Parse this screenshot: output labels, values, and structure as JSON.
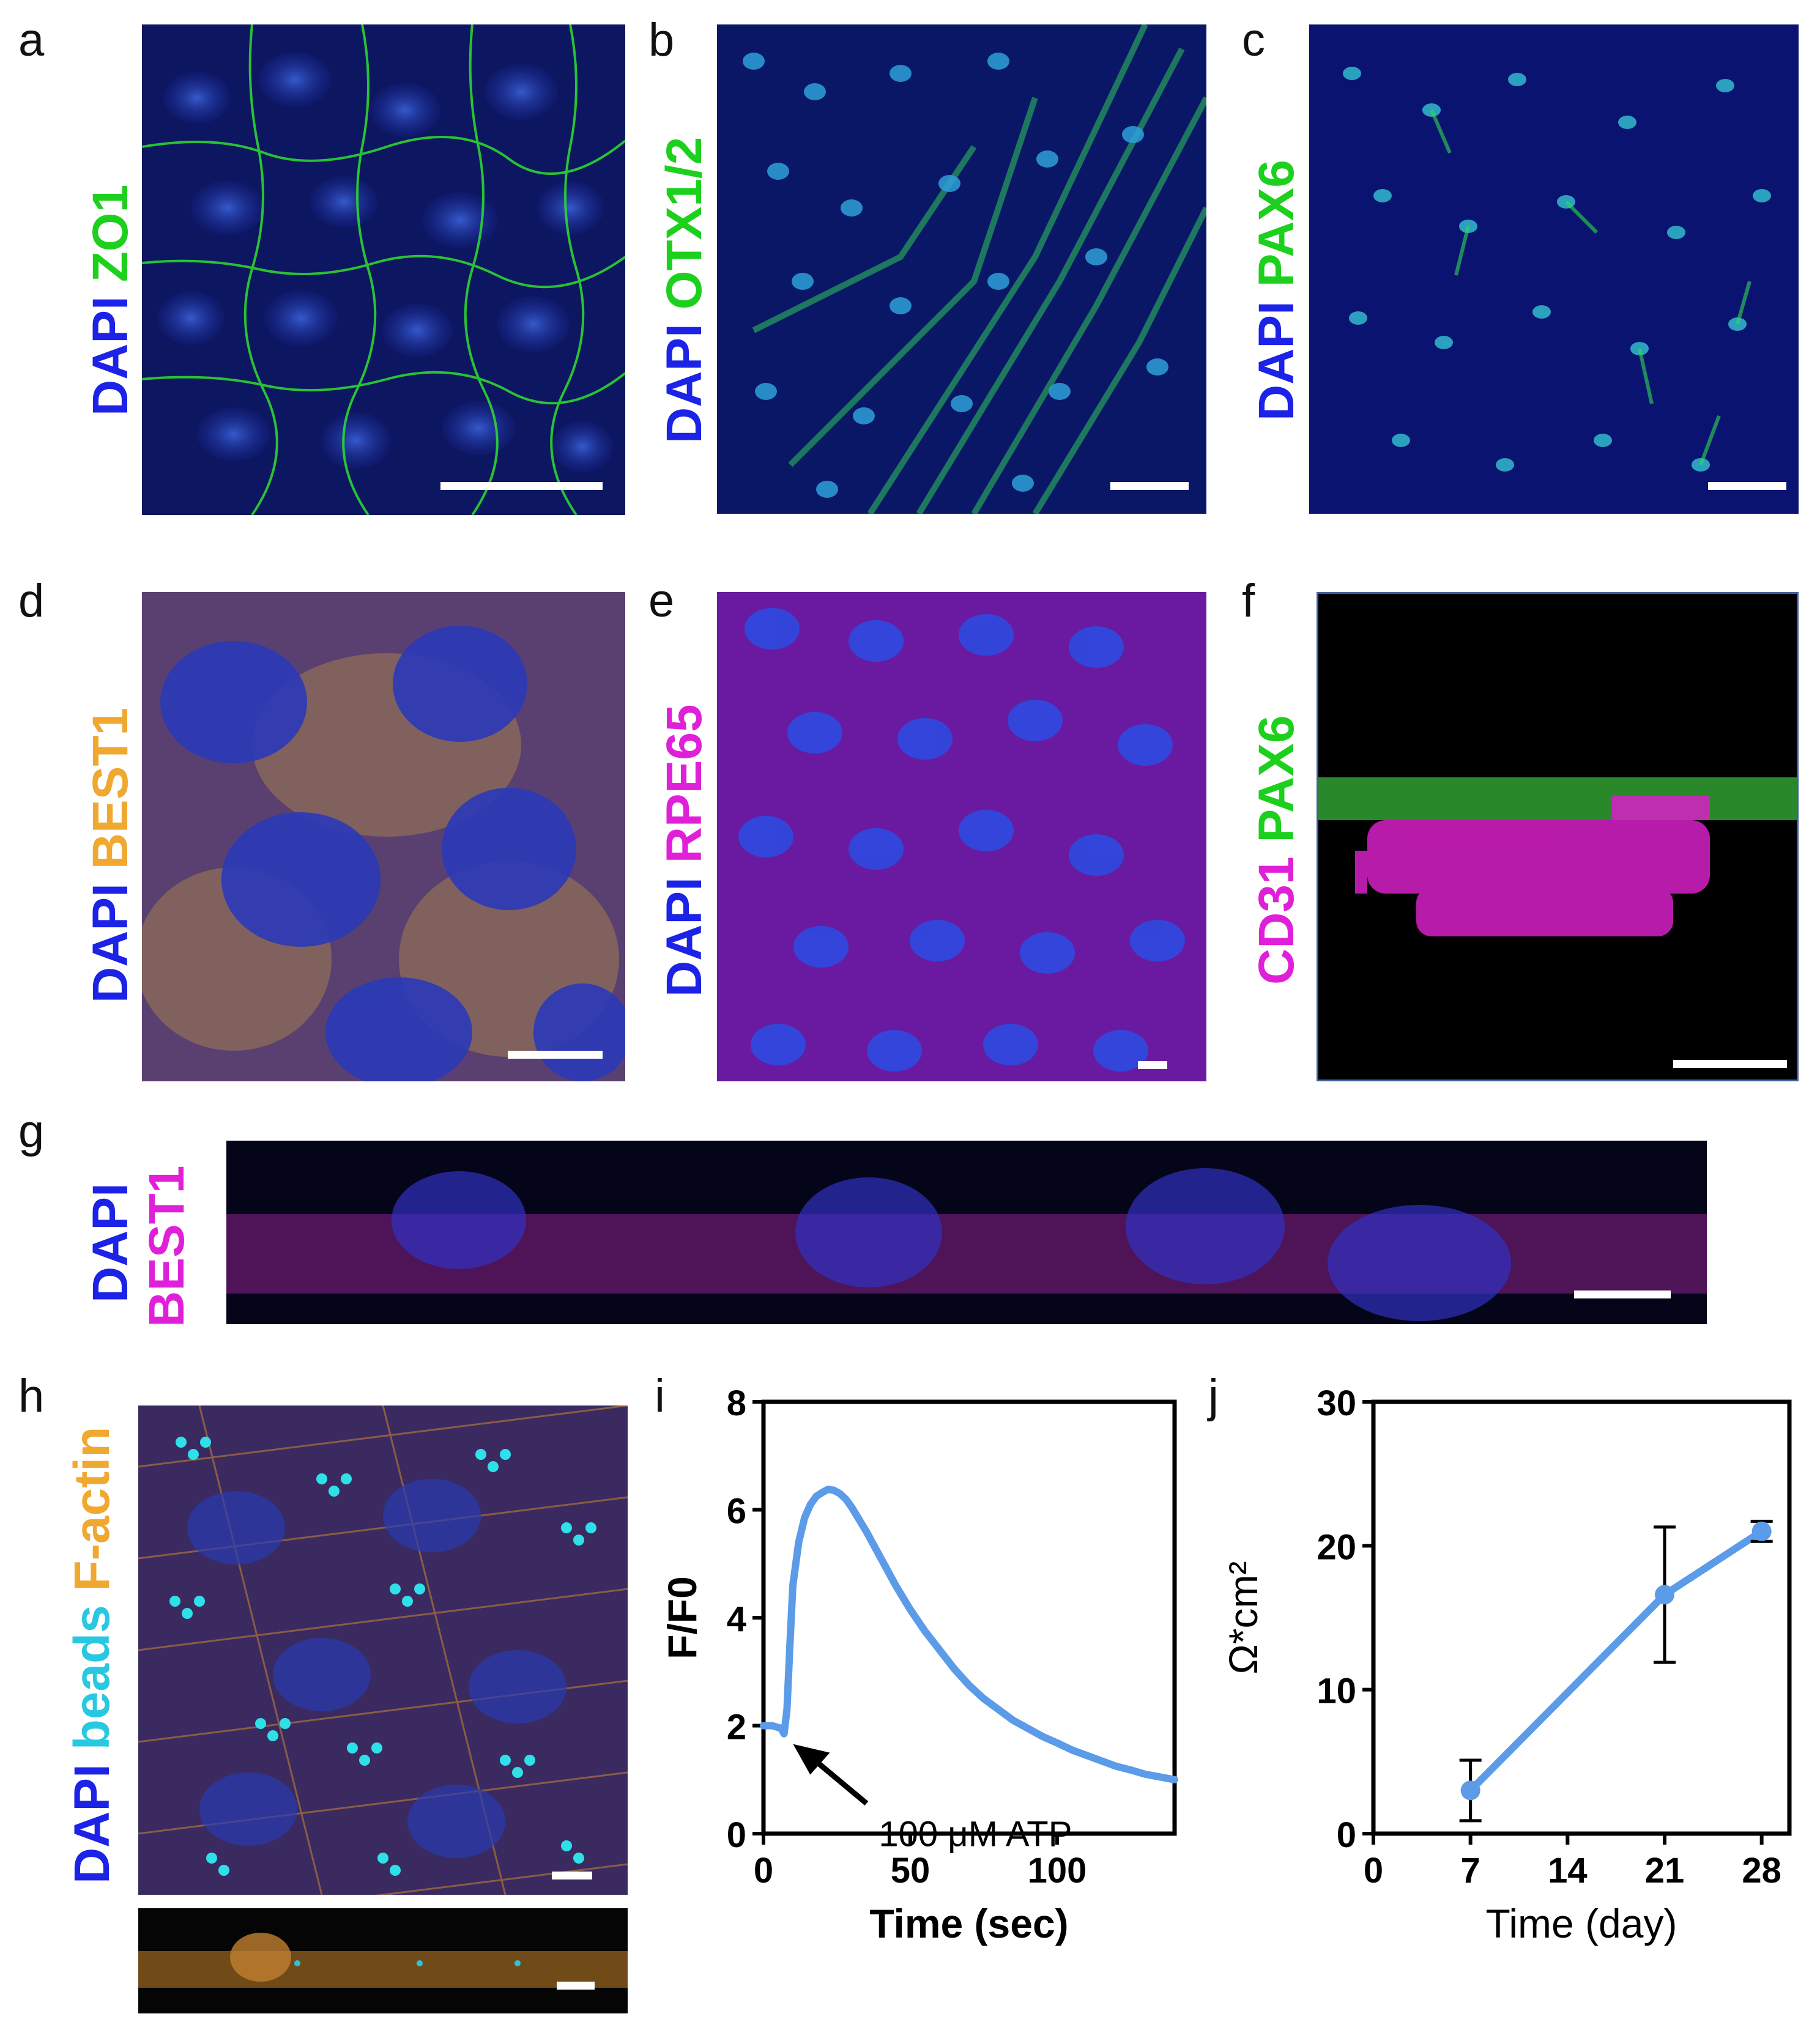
{
  "panels": {
    "a": {
      "letter": "a",
      "stain1": "DAPI",
      "stain2": "ZO1",
      "color1": "#1c22e6",
      "color2": "#1ed01e"
    },
    "b": {
      "letter": "b",
      "stain1": "DAPI",
      "stain2": "OTX1/2",
      "color1": "#1c22e6",
      "color2": "#1ed01e"
    },
    "c": {
      "letter": "c",
      "stain1": "DAPI",
      "stain2": "PAX6",
      "color1": "#1c22e6",
      "color2": "#1ed01e"
    },
    "d": {
      "letter": "d",
      "stain1": "DAPI",
      "stain2": "BEST1",
      "color1": "#1c22e6",
      "color2": "#f0a830"
    },
    "e": {
      "letter": "e",
      "stain1": "DAPI",
      "stain2": "RPE65",
      "color1": "#1c22e6",
      "color2": "#e020d8"
    },
    "f": {
      "letter": "f",
      "stain1": "CD31",
      "stain2": "PAX6",
      "color1": "#e020d8",
      "color2": "#1ed01e"
    },
    "g": {
      "letter": "g",
      "stain1": "DAPI",
      "stain2": "BEST1",
      "color1": "#1c22e6",
      "color2": "#e020d8"
    },
    "h": {
      "letter": "h",
      "stain1": "DAPI",
      "stain2": "beads",
      "stain3": "F-actin",
      "color1": "#1c22e6",
      "color2": "#28c8e0",
      "color3": "#f0a830"
    },
    "i": {
      "letter": "i"
    },
    "j": {
      "letter": "j"
    }
  },
  "chart_data": [
    {
      "panel": "i",
      "type": "line",
      "xlabel": "Time (sec)",
      "ylabel": "F/F0",
      "xlim": [
        0,
        140
      ],
      "ylim": [
        0,
        8
      ],
      "xticks": [
        "0",
        "50",
        "100"
      ],
      "yticks": [
        "0",
        "2",
        "4",
        "6",
        "8"
      ],
      "annotation": "100 μM ATP",
      "line_color": "#5b9be8",
      "x": [
        0,
        3,
        6,
        7,
        8,
        9,
        10,
        12,
        14,
        16,
        18,
        20,
        22,
        24,
        26,
        28,
        30,
        35,
        40,
        45,
        50,
        55,
        60,
        65,
        70,
        75,
        80,
        85,
        90,
        95,
        100,
        105,
        110,
        115,
        120,
        125,
        130,
        135,
        140
      ],
      "y": [
        2.0,
        2.0,
        1.95,
        1.85,
        2.3,
        3.5,
        4.6,
        5.4,
        5.85,
        6.1,
        6.25,
        6.32,
        6.38,
        6.36,
        6.3,
        6.2,
        6.05,
        5.6,
        5.1,
        4.6,
        4.15,
        3.75,
        3.4,
        3.05,
        2.75,
        2.5,
        2.3,
        2.1,
        1.95,
        1.8,
        1.68,
        1.55,
        1.45,
        1.35,
        1.25,
        1.18,
        1.1,
        1.05,
        1.0
      ]
    },
    {
      "panel": "j",
      "type": "line",
      "xlabel": "Time (day)",
      "ylabel": "Ω*cm²",
      "xlim": [
        0,
        30
      ],
      "ylim": [
        0,
        30
      ],
      "xticks": [
        "0",
        "7",
        "14",
        "21",
        "28"
      ],
      "yticks": [
        "0",
        "10",
        "20",
        "30"
      ],
      "line_color": "#5b9be8",
      "x": [
        7,
        21,
        28
      ],
      "y": [
        3.0,
        16.6,
        21.0
      ],
      "error": [
        2.1,
        4.7,
        0.7
      ]
    }
  ]
}
